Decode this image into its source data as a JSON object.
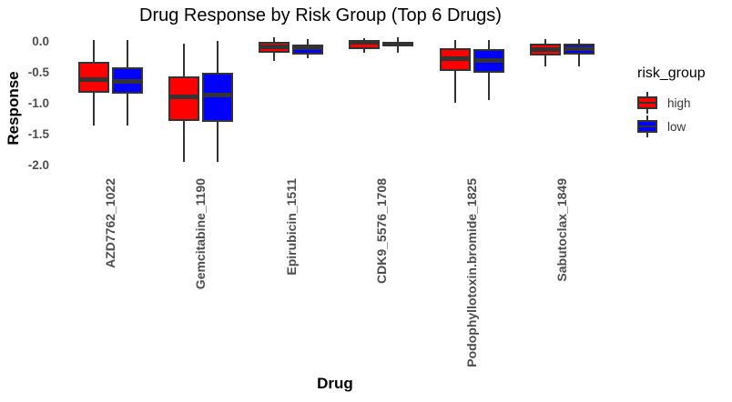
{
  "title": "Drug Response by Risk Group (Top 6 Drugs)",
  "x_axis_title": "Drug",
  "y_axis_title": "Response",
  "legend": {
    "title": "risk_group",
    "items": [
      {
        "label": "high",
        "color": "#FF0000"
      },
      {
        "label": "low",
        "color": "#0000FF"
      }
    ]
  },
  "colors": {
    "high": "#FF0000",
    "low": "#0000FF",
    "box_outline": "#333333",
    "axis_text": "#4D4D4D",
    "title_text": "#000000",
    "background": "#FFFFFF"
  },
  "chart_data": {
    "type": "boxplot",
    "title": "Drug Response by Risk Group (Top 6 Drugs)",
    "xlabel": "Drug",
    "ylabel": "Response",
    "grid": false,
    "legend_position": "right",
    "ylim": [
      -2.05,
      0.12
    ],
    "yticks": [
      {
        "value": 0.0,
        "label": "0.0"
      },
      {
        "value": -0.5,
        "label": "-0.5"
      },
      {
        "value": -1.0,
        "label": "-1.0"
      },
      {
        "value": -1.5,
        "label": "-1.5"
      },
      {
        "value": -2.0,
        "label": "-2.0"
      }
    ],
    "categories": [
      "AZD7762_1022",
      "Gemcitabine_1190",
      "Epirubicin_1511",
      "CDK9_5576_1708",
      "Podophyllotoxin.bromide_1825",
      "Sabutoclax_1849"
    ],
    "series": [
      {
        "name": "high",
        "color": "#FF0000",
        "boxes": [
          {
            "min": -1.36,
            "q1": -0.83,
            "median": -0.62,
            "q3": -0.33,
            "max": 0.02
          },
          {
            "min": -1.95,
            "q1": -1.29,
            "median": -0.9,
            "q3": -0.56,
            "max": -0.03
          },
          {
            "min": -0.31,
            "q1": -0.18,
            "median": -0.09,
            "q3": -0.01,
            "max": 0.06
          },
          {
            "min": -0.18,
            "q1": -0.13,
            "median": -0.02,
            "q3": 0.01,
            "max": 0.05
          },
          {
            "min": -0.99,
            "q1": -0.48,
            "median": -0.28,
            "q3": -0.11,
            "max": 0.02
          },
          {
            "min": -0.41,
            "q1": -0.23,
            "median": -0.13,
            "q3": -0.04,
            "max": 0.03
          }
        ]
      },
      {
        "name": "low",
        "color": "#0000FF",
        "boxes": [
          {
            "min": -1.36,
            "q1": -0.85,
            "median": -0.64,
            "q3": -0.42,
            "max": 0.02
          },
          {
            "min": -1.95,
            "q1": -1.3,
            "median": -0.86,
            "q3": -0.5,
            "max": 0.01
          },
          {
            "min": -0.27,
            "q1": -0.21,
            "median": -0.11,
            "q3": -0.05,
            "max": 0.04
          },
          {
            "min": -0.18,
            "q1": -0.085,
            "median": -0.05,
            "q3": -0.01,
            "max": 0.07
          },
          {
            "min": -0.95,
            "q1": -0.51,
            "median": -0.31,
            "q3": -0.12,
            "max": 0.02
          },
          {
            "min": -0.41,
            "q1": -0.22,
            "median": -0.12,
            "q3": -0.03,
            "max": 0.04
          }
        ]
      }
    ]
  }
}
